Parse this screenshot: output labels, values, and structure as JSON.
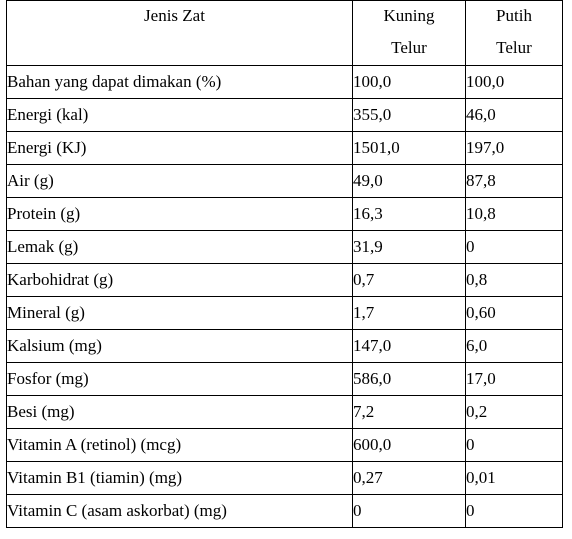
{
  "table": {
    "headers": {
      "col1": "Jenis Zat",
      "col2_line1": "Kuning",
      "col2_line2": "Telur",
      "col3_line1": "Putih",
      "col3_line2": "Telur"
    },
    "rows": [
      {
        "label": "Bahan yang dapat dimakan (%)",
        "kuning": "100,0",
        "putih": "100,0"
      },
      {
        "label": "Energi (kal)",
        "kuning": "355,0",
        "putih": "46,0"
      },
      {
        "label": "Energi (KJ)",
        "kuning": "1501,0",
        "putih": "197,0"
      },
      {
        "label": "Air (g)",
        "kuning": "49,0",
        "putih": "87,8"
      },
      {
        "label": "Protein (g)",
        "kuning": "16,3",
        "putih": "10,8"
      },
      {
        "label": "Lemak (g)",
        "kuning": "31,9",
        "putih": "0"
      },
      {
        "label": "Karbohidrat (g)",
        "kuning": "0,7",
        "putih": "0,8"
      },
      {
        "label": "Mineral (g)",
        "kuning": "1,7",
        "putih": "0,60"
      },
      {
        "label": "Kalsium (mg)",
        "kuning": "147,0",
        "putih": "6,0"
      },
      {
        "label": "Fosfor (mg)",
        "kuning": "586,0",
        "putih": "17,0"
      },
      {
        "label": "Besi (mg)",
        "kuning": "7,2",
        "putih": "0,2"
      },
      {
        "label": "Vitamin A (retinol) (mcg)",
        "kuning": "600,0",
        "putih": "0"
      },
      {
        "label": "Vitamin B1 (tiamin) (mg)",
        "kuning": "0,27",
        "putih": "0,01"
      },
      {
        "label": "Vitamin C (asam askorbat) (mg)",
        "kuning": "0",
        "putih": "0"
      }
    ]
  }
}
